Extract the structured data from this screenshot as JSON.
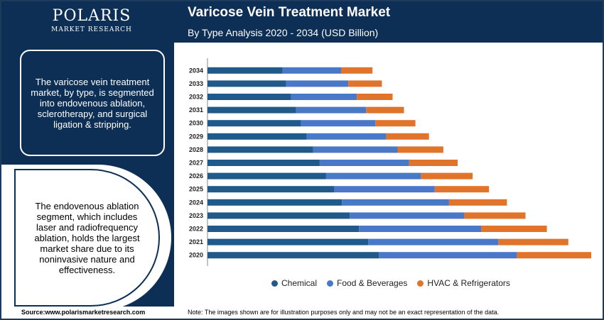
{
  "brand": {
    "name": "POLARIS",
    "subtitle": "MARKET RESEARCH"
  },
  "panel": {
    "summary": "The varicose vein treatment market, by type, is segmented into endovenous ablation, sclerotherapy, and surgical ligation & stripping.",
    "highlight": "The endovenous ablation segment, which includes laser and radiofrequency ablation, holds the largest market share due to its noninvasive nature and effectiveness."
  },
  "footer": {
    "source": "Source:www.polarismarketresearch.com",
    "note": "Note: The images shown are for illustration purposes only and may not be an exact representation of the data."
  },
  "chart_data": {
    "type": "bar",
    "orientation": "horizontal",
    "stacked": true,
    "title": "Varicose Vein Treatment Market",
    "subtitle": "By Type Analysis 2020 - 2034 (USD Billion)",
    "categories": [
      "2034",
      "2033",
      "2032",
      "2031",
      "2030",
      "2029",
      "2028",
      "2027",
      "2026",
      "2025",
      "2024",
      "2023",
      "2022",
      "2021",
      "2020"
    ],
    "series": [
      {
        "name": "Chemical",
        "color": "#1f5a8a",
        "values": [
          105,
          110,
          117,
          124,
          131,
          139,
          148,
          157,
          166,
          177,
          188,
          199,
          212,
          225,
          240
        ]
      },
      {
        "name": "Food & Beverages",
        "color": "#4a78c8",
        "values": [
          82,
          87,
          92,
          98,
          104,
          111,
          118,
          125,
          133,
          141,
          150,
          160,
          171,
          182,
          193
        ]
      },
      {
        "name": "HVAC & Refrigerators",
        "color": "#e0742a",
        "values": [
          44,
          47,
          50,
          53,
          56,
          60,
          64,
          68,
          72,
          76,
          81,
          86,
          92,
          98,
          104
        ]
      }
    ],
    "xlabel": "",
    "ylabel": "",
    "grid": false,
    "legend": "bottom"
  }
}
